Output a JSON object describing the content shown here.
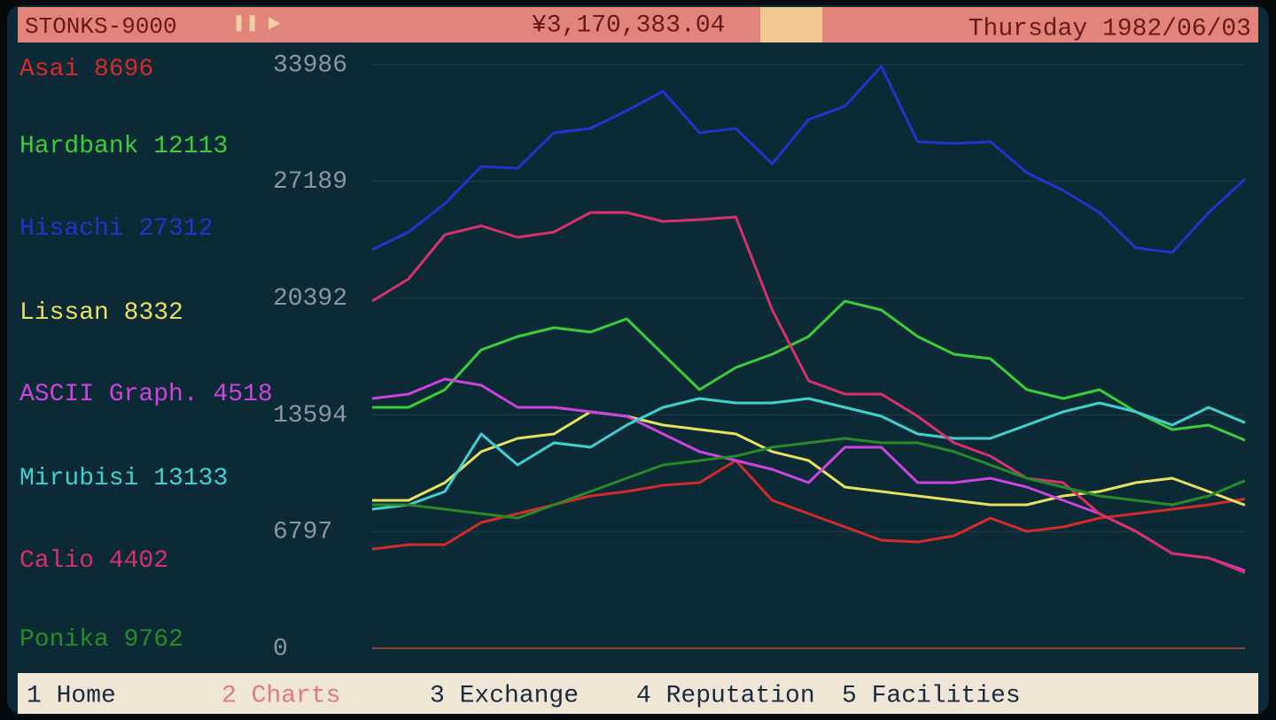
{
  "header": {
    "app": "STONKS-9000",
    "balance": "¥3,170,383.04",
    "date": "Thursday 1982/06/03"
  },
  "chart_data": {
    "type": "line",
    "ylim": [
      0,
      33986
    ],
    "yticks": [
      0,
      6797,
      13594,
      20392,
      27189,
      33986
    ],
    "grid": true,
    "legend": "left",
    "series": [
      {
        "name": "Asai",
        "price": 8696,
        "color": "#d42a2a",
        "values": [
          5776,
          6034,
          6034,
          7323,
          7839,
          8354,
          8870,
          9128,
          9489,
          9644,
          10933,
          8612,
          7839,
          7065,
          6292,
          6188,
          6549,
          7581,
          6807,
          7065,
          7581,
          7839,
          8096,
          8354,
          8696
        ]
      },
      {
        "name": "Hardbank",
        "price": 12113,
        "color": "#3ccc3c",
        "values": [
          14027,
          14027,
          15058,
          17379,
          18153,
          18668,
          18410,
          19184,
          17121,
          15058,
          16348,
          17121,
          18153,
          20215,
          19700,
          18153,
          17121,
          16863,
          15058,
          14543,
          15058,
          13769,
          12738,
          12996,
          12113
        ]
      },
      {
        "name": "Hisachi",
        "price": 27312,
        "color": "#2233cc",
        "values": [
          23207,
          24238,
          25888,
          28054,
          27951,
          30014,
          30272,
          31303,
          32438,
          30014,
          30272,
          28209,
          30787,
          31561,
          33881,
          29498,
          29395,
          29498,
          27693,
          26662,
          25372,
          23310,
          23052,
          25372,
          27312
        ]
      },
      {
        "name": "Lissan",
        "price": 8332,
        "color": "#e8e060",
        "values": [
          8612,
          8612,
          9644,
          11448,
          12222,
          12480,
          13769,
          13511,
          12996,
          12738,
          12480,
          11448,
          10933,
          9386,
          9128,
          8870,
          8612,
          8354,
          8354,
          8870,
          9128,
          9644,
          9901,
          9128,
          8332
        ]
      },
      {
        "name": "ASCII Graph.",
        "price": 4518,
        "color": "#cc44dd",
        "values": [
          14543,
          14801,
          15677,
          15316,
          14027,
          14027,
          13769,
          13511,
          12480,
          11448,
          10933,
          10417,
          9644,
          11706,
          11706,
          9644,
          9644,
          9901,
          9386,
          8612,
          7839,
          6807,
          5518,
          5260,
          4518
        ]
      },
      {
        "name": "Mirubisi",
        "price": 13133,
        "color": "#40d0d0",
        "values": [
          8096,
          8354,
          9128,
          12480,
          10675,
          11964,
          11706,
          12996,
          14027,
          14543,
          14285,
          14285,
          14543,
          14027,
          13511,
          12480,
          12222,
          12222,
          12996,
          13769,
          14285,
          13769,
          12996,
          14027,
          13133
        ]
      },
      {
        "name": "Calio",
        "price": 4402,
        "color": "#d8306a",
        "values": [
          20215,
          21505,
          24083,
          24599,
          23928,
          24238,
          25372,
          25372,
          24857,
          24960,
          25115,
          19700,
          15574,
          14801,
          14801,
          13511,
          11964,
          11191,
          9901,
          9644,
          7839,
          6807,
          5518,
          5260,
          4402
        ]
      },
      {
        "name": "Ponika",
        "price": 9762,
        "color": "#2a8a2a",
        "values": [
          8354,
          8354,
          8096,
          7839,
          7581,
          8354,
          9128,
          9901,
          10675,
          10933,
          11191,
          11706,
          11964,
          12222,
          11964,
          11964,
          11448,
          10675,
          9901,
          9386,
          8870,
          8612,
          8354,
          8870,
          9762
        ]
      }
    ]
  },
  "menu": [
    "1 Home",
    "2 Charts",
    "3 Exchange",
    "4 Reputation",
    "5 Facilities"
  ]
}
